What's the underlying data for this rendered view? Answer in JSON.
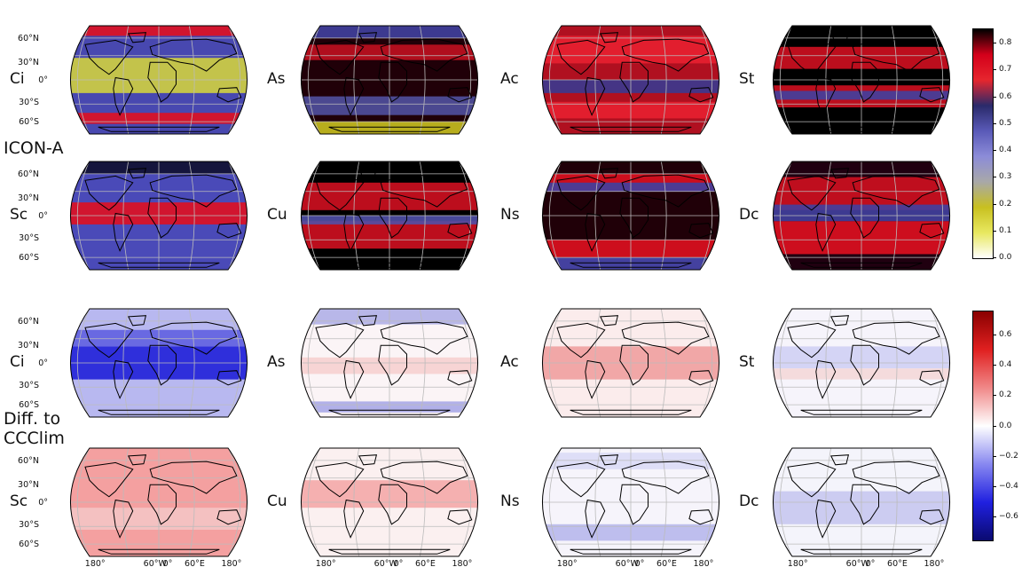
{
  "group_top": {
    "label": "ICON-A"
  },
  "group_bottom": {
    "label_line1": "Diff. to",
    "label_line2": "CCClim"
  },
  "panel_labels": [
    "Ci",
    "As",
    "Ac",
    "St",
    "Sc",
    "Cu",
    "Ns",
    "Dc"
  ],
  "lat_labels": [
    "60°N",
    "30°N",
    "0°",
    "30°S",
    "60°S"
  ],
  "lon_labels": [
    "180°",
    "60°W",
    "0°",
    "60°E",
    "180°"
  ],
  "colorbar_top": {
    "colormap": [
      "#000000",
      "#d4001a",
      "#e6262e",
      "#2a2a6a",
      "#5a5ab8",
      "#8c8cd8",
      "#a8a8a8",
      "#c8c020",
      "#e8e860",
      "#ffffff"
    ],
    "ticks": [
      "0.8",
      "0.7",
      "0.6",
      "0.5",
      "0.4",
      "0.3",
      "0.2",
      "0.1",
      "0.0"
    ],
    "range": [
      0.0,
      0.85
    ]
  },
  "colorbar_bottom": {
    "colormap": [
      "#0a0a70",
      "#2020e0",
      "#8888f0",
      "#ffffff",
      "#f08888",
      "#e02020",
      "#8a0000"
    ],
    "ticks": [
      "0.6",
      "0.4",
      "0.2",
      "0.0",
      "−0.2",
      "−0.4",
      "−0.6"
    ],
    "range": [
      -0.75,
      0.75
    ]
  }
}
